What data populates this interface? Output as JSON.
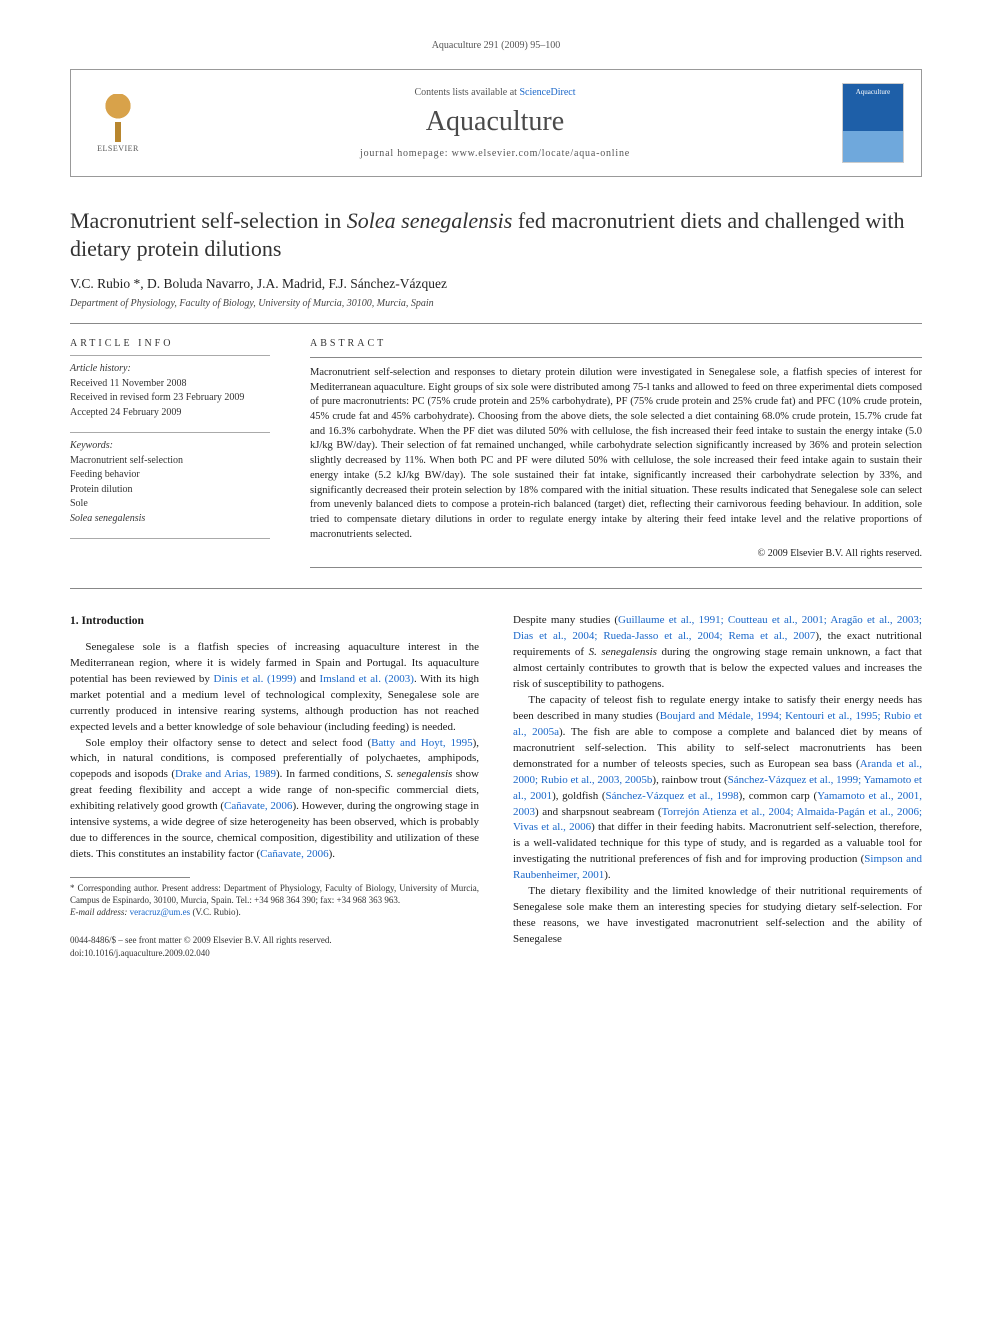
{
  "running_head": "Aquaculture 291 (2009) 95–100",
  "header": {
    "contents_prefix": "Contents lists available at ",
    "contents_link": "ScienceDirect",
    "journal": "Aquaculture",
    "homepage_prefix": "journal homepage: ",
    "homepage": "www.elsevier.com/locate/aqua-online",
    "elsevier": "ELSEVIER",
    "cover_label": "Aquaculture"
  },
  "title": {
    "pre": "Macronutrient self-selection in ",
    "species": "Solea senegalensis",
    "post": " fed macronutrient diets and challenged with dietary protein dilutions"
  },
  "authors": "V.C. Rubio *, D. Boluda Navarro, J.A. Madrid, F.J. Sánchez-Vázquez",
  "affiliation": "Department of Physiology, Faculty of Biology, University of Murcia, 30100, Murcia, Spain",
  "article_info": {
    "head": "ARTICLE INFO",
    "history_label": "Article history:",
    "received": "Received 11 November 2008",
    "revised": "Received in revised form 23 February 2009",
    "accepted": "Accepted 24 February 2009",
    "keywords_label": "Keywords:",
    "keywords": [
      "Macronutrient self-selection",
      "Feeding behavior",
      "Protein dilution",
      "Sole",
      "Solea senegalensis"
    ]
  },
  "abstract": {
    "head": "ABSTRACT",
    "text": "Macronutrient self-selection and responses to dietary protein dilution were investigated in Senegalese sole, a flatfish species of interest for Mediterranean aquaculture. Eight groups of six sole were distributed among 75-l tanks and allowed to feed on three experimental diets composed of pure macronutrients: PC (75% crude protein and 25% carbohydrate), PF (75% crude protein and 25% crude fat) and PFC (10% crude protein, 45% crude fat and 45% carbohydrate). Choosing from the above diets, the sole selected a diet containing 68.0% crude protein, 15.7% crude fat and 16.3% carbohydrate. When the PF diet was diluted 50% with cellulose, the fish increased their feed intake to sustain the energy intake (5.0 kJ/kg BW/day). Their selection of fat remained unchanged, while carbohydrate selection significantly increased by 36% and protein selection slightly decreased by 11%. When both PC and PF were diluted 50% with cellulose, the sole increased their feed intake again to sustain their energy intake (5.2 kJ/kg BW/day). The sole sustained their fat intake, significantly increased their carbohydrate selection by 33%, and significantly decreased their protein selection by 18% compared with the initial situation. These results indicated that Senegalese sole can select from unevenly balanced diets to compose a protein-rich balanced (target) diet, reflecting their carnivorous feeding behaviour. In addition, sole tried to compensate dietary dilutions in order to regulate energy intake by altering their feed intake level and the relative proportions of macronutrients selected.",
    "copyright": "© 2009 Elsevier B.V. All rights reserved."
  },
  "intro": {
    "head": "1. Introduction",
    "p1a": "Senegalese sole is a flatfish species of increasing aquaculture interest in the Mediterranean region, where it is widely farmed in Spain and Portugal. Its aquaculture potential has been reviewed by ",
    "p1_ref1": "Dinis et al. (1999)",
    "p1b": " and ",
    "p1_ref2": "Imsland et al. (2003)",
    "p1c": ". With its high market potential and a medium level of technological complexity, Senegalese sole are currently produced in intensive rearing systems, although production has not reached expected levels and a better knowledge of sole behaviour (including feeding) is needed.",
    "p2a": "Sole employ their olfactory sense to detect and select food (",
    "p2_ref1": "Batty and Hoyt, 1995",
    "p2b": "), which, in natural conditions, is composed preferentially of polychaetes, amphipods, copepods and isopods (",
    "p2_ref2": "Drake and Arias, 1989",
    "p2c": "). In farmed conditions, ",
    "p2_species": "S. senegalensis",
    "p2d": " show great feeding flexibility and accept a wide range of non-specific commercial diets, exhibiting relatively good growth (",
    "p2_ref3": "Cañavate, 2006",
    "p2e": "). However, during the ongrowing stage in intensive systems, a wide degree of size heterogeneity has been observed, which is probably due to differences in the source, chemical composition, digestibility and utilization of these diets. This constitutes an instability factor (",
    "p2_ref4": "Cañavate, 2006",
    "p2f": ").",
    "p3a": "Despite many studies (",
    "p3_ref1": "Guillaume et al., 1991; Coutteau et al., 2001; Aragão et al., 2003; Dias et al., 2004; Rueda-Jasso et al., 2004; Rema et al., 2007",
    "p3b": "), the exact nutritional requirements of ",
    "p3_species": "S. senegalensis",
    "p3c": " during the ongrowing stage remain unknown, a fact that almost certainly contributes to growth that is below the expected values and increases the risk of susceptibility to pathogens.",
    "p4a": "The capacity of teleost fish to regulate energy intake to satisfy their energy needs has been described in many studies (",
    "p4_ref1": "Boujard and Médale, 1994; Kentouri et al., 1995; Rubio et al., 2005a",
    "p4b": "). The fish are able to compose a complete and balanced diet by means of macronutrient self-selection. This ability to self-select macronutrients has been demonstrated for a number of teleosts species, such as European sea bass (",
    "p4_ref2": "Aranda et al., 2000; Rubio et al., 2003, 2005b",
    "p4c": "), rainbow trout (",
    "p4_ref3": "Sánchez-Vázquez et al., 1999; Yamamoto et al., 2001",
    "p4d": "), goldfish (",
    "p4_ref4": "Sánchez-Vázquez et al., 1998",
    "p4e": "), common carp (",
    "p4_ref5": "Yamamoto et al., 2001, 2003",
    "p4f": ") and sharpsnout seabream (",
    "p4_ref6": "Torrejón Atienza et al., 2004; Almaida-Pagán et al., 2006; Vivas et al., 2006",
    "p4g": ") that differ in their feeding habits. Macronutrient self-selection, therefore, is a well-validated technique for this type of study, and is regarded as a valuable tool for investigating the nutritional preferences of fish and for improving production (",
    "p4_ref7": "Simpson and Raubenheimer, 2001",
    "p4h": ").",
    "p5": "The dietary flexibility and the limited knowledge of their nutritional requirements of Senegalese sole make them an interesting species for studying dietary self-selection. For these reasons, we have investigated macronutrient self-selection and the ability of Senegalese"
  },
  "footnote": {
    "corr": "* Corresponding author. Present address: Department of Physiology, Faculty of Biology, University of Murcia, Campus de Espinardo, 30100, Murcia, Spain. Tel.: +34 968 364 390; fax: +34 968 363 963.",
    "email_label": "E-mail address: ",
    "email": "veracruz@um.es",
    "email_who": " (V.C. Rubio)."
  },
  "bottom": {
    "line1": "0044-8486/$ – see front matter © 2009 Elsevier B.V. All rights reserved.",
    "line2": "doi:10.1016/j.aquaculture.2009.02.040"
  },
  "colors": {
    "link": "#1a67c9",
    "text": "#1a1a1a",
    "rule": "#888888"
  }
}
